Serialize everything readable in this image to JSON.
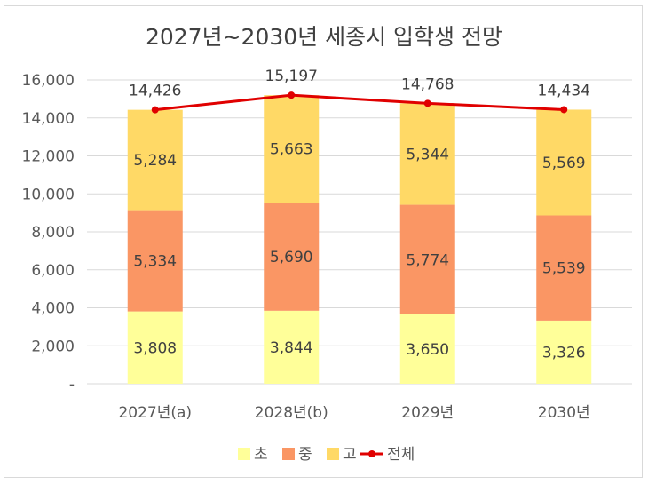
{
  "chart_data": {
    "type": "bar",
    "stacked": true,
    "title": "2027년~2030년 세종시 입학생 전망",
    "categories": [
      "2027년(a)",
      "2028년(b)",
      "2029년",
      "2030년"
    ],
    "series": [
      {
        "name": "초",
        "type": "bar",
        "color": "#ffff99",
        "values": [
          3808,
          3844,
          3650,
          3326
        ],
        "labels": [
          "3,808",
          "3,844",
          "3,650",
          "3,326"
        ]
      },
      {
        "name": "중",
        "type": "bar",
        "color": "#fa9664",
        "values": [
          5334,
          5690,
          5774,
          5539
        ],
        "labels": [
          "5,334",
          "5,690",
          "5,774",
          "5,539"
        ]
      },
      {
        "name": "고",
        "type": "bar",
        "color": "#ffd966",
        "values": [
          5284,
          5663,
          5344,
          5569
        ],
        "labels": [
          "5,284",
          "5,663",
          "5,344",
          "5,569"
        ]
      },
      {
        "name": "전체",
        "type": "line",
        "color": "#e00000",
        "values": [
          14426,
          15197,
          14768,
          14434
        ],
        "labels": [
          "14,426",
          "15,197",
          "14,768",
          "14,434"
        ]
      }
    ],
    "yaxis": {
      "min": 0,
      "max": 16000,
      "ticks": [
        0,
        2000,
        4000,
        6000,
        8000,
        10000,
        12000,
        14000,
        16000
      ],
      "tick_labels": [
        "-",
        "2,000",
        "4,000",
        "6,000",
        "8,000",
        "10,000",
        "12,000",
        "14,000",
        "16,000"
      ]
    },
    "grid": true,
    "legend_position": "bottom"
  }
}
